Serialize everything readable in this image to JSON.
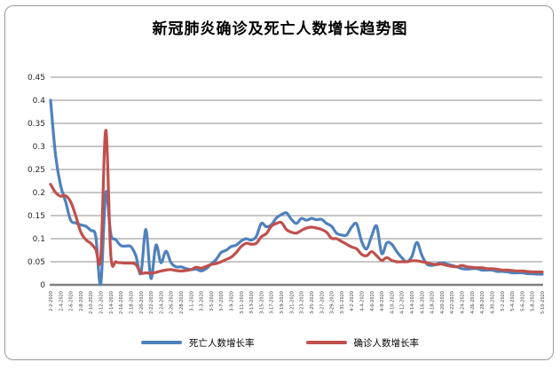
{
  "chart_data": {
    "type": "line",
    "title": "新冠肺炎确诊及死亡人数增长趋势图",
    "smoothed": true,
    "grid": true,
    "legend_position": "bottom",
    "ylim": [
      0,
      0.45
    ],
    "y_tick_labels": [
      "0.45",
      "0.4",
      "0.35",
      "0.3",
      "0.25",
      "0.2",
      "0.15",
      "0.1",
      "0.05",
      "0"
    ],
    "x_frequency": "daily",
    "x_ticks_every_n_points": 2,
    "x_tick_labels": [
      "2-2-2020",
      "2-4-2020",
      "2-6-2020",
      "2-8-2020",
      "2-10-2020",
      "2-12-2020",
      "2-14-2020",
      "2-16-2020",
      "2-18-2020",
      "2-20-2020",
      "2-22-2020",
      "2-24-2020",
      "2-26-2020",
      "2-28-2020",
      "3-1-2020",
      "3-3-2020",
      "3-5-2020",
      "3-7-2020",
      "3-9-2020",
      "3-11-2020",
      "3-13-2020",
      "3-15-2020",
      "3-17-2020",
      "3-19-2020",
      "3-21-2020",
      "3-23-2020",
      "3-25-2020",
      "3-27-2020",
      "3-29-2020",
      "3-31-2020",
      "4-2-2020",
      "4-4-2020",
      "4-6-2020",
      "4-8-2020",
      "4-10-2020",
      "4-12-2020",
      "4-14-2020",
      "4-16-2020",
      "4-18-2020",
      "4-20-2020",
      "4-22-2020",
      "4-24-2020",
      "4-26-2020",
      "4-28-2020",
      "4-30-2020",
      "5-2-2020",
      "5-4-2020",
      "5-6-2020",
      "5-8-2020",
      "5-10-2020"
    ],
    "grid_color": "#8F8F8F",
    "axis_color": "#808080",
    "series": [
      {
        "name": "死亡人数增长率",
        "color": "#4F81BD",
        "values": [
          0.4,
          0.28,
          0.215,
          0.18,
          0.14,
          0.134,
          0.13,
          0.127,
          0.118,
          0.105,
          0.002,
          0.2,
          0.11,
          0.098,
          0.085,
          0.084,
          0.083,
          0.063,
          0.025,
          0.12,
          0.014,
          0.086,
          0.048,
          0.073,
          0.048,
          0.039,
          0.039,
          0.035,
          0.033,
          0.034,
          0.03,
          0.035,
          0.045,
          0.055,
          0.07,
          0.075,
          0.083,
          0.086,
          0.095,
          0.1,
          0.097,
          0.105,
          0.133,
          0.126,
          0.13,
          0.145,
          0.152,
          0.156,
          0.142,
          0.133,
          0.144,
          0.14,
          0.144,
          0.141,
          0.142,
          0.133,
          0.127,
          0.112,
          0.108,
          0.108,
          0.125,
          0.132,
          0.094,
          0.078,
          0.106,
          0.127,
          0.068,
          0.091,
          0.088,
          0.072,
          0.059,
          0.05,
          0.061,
          0.092,
          0.064,
          0.045,
          0.042,
          0.045,
          0.048,
          0.045,
          0.042,
          0.039,
          0.035,
          0.034,
          0.035,
          0.035,
          0.032,
          0.032,
          0.032,
          0.029,
          0.029,
          0.028,
          0.026,
          0.026,
          0.026,
          0.024,
          0.024,
          0.023,
          0.023
        ]
      },
      {
        "name": "确诊人数增长率",
        "color": "#C0504D",
        "values": [
          0.218,
          0.2,
          0.192,
          0.193,
          0.18,
          0.15,
          0.115,
          0.098,
          0.09,
          0.077,
          0.06,
          0.335,
          0.065,
          0.05,
          0.048,
          0.047,
          0.047,
          0.044,
          0.026,
          0.026,
          0.025,
          0.027,
          0.03,
          0.032,
          0.033,
          0.031,
          0.03,
          0.031,
          0.033,
          0.038,
          0.036,
          0.04,
          0.044,
          0.046,
          0.05,
          0.055,
          0.06,
          0.07,
          0.083,
          0.09,
          0.088,
          0.09,
          0.104,
          0.111,
          0.127,
          0.133,
          0.135,
          0.12,
          0.114,
          0.112,
          0.118,
          0.123,
          0.125,
          0.123,
          0.12,
          0.114,
          0.101,
          0.1,
          0.094,
          0.088,
          0.082,
          0.078,
          0.066,
          0.063,
          0.072,
          0.063,
          0.053,
          0.059,
          0.053,
          0.05,
          0.05,
          0.05,
          0.052,
          0.052,
          0.05,
          0.048,
          0.045,
          0.044,
          0.045,
          0.042,
          0.04,
          0.039,
          0.042,
          0.039,
          0.038,
          0.037,
          0.037,
          0.035,
          0.035,
          0.034,
          0.032,
          0.032,
          0.031,
          0.03,
          0.03,
          0.029,
          0.028,
          0.028,
          0.028
        ]
      }
    ]
  }
}
